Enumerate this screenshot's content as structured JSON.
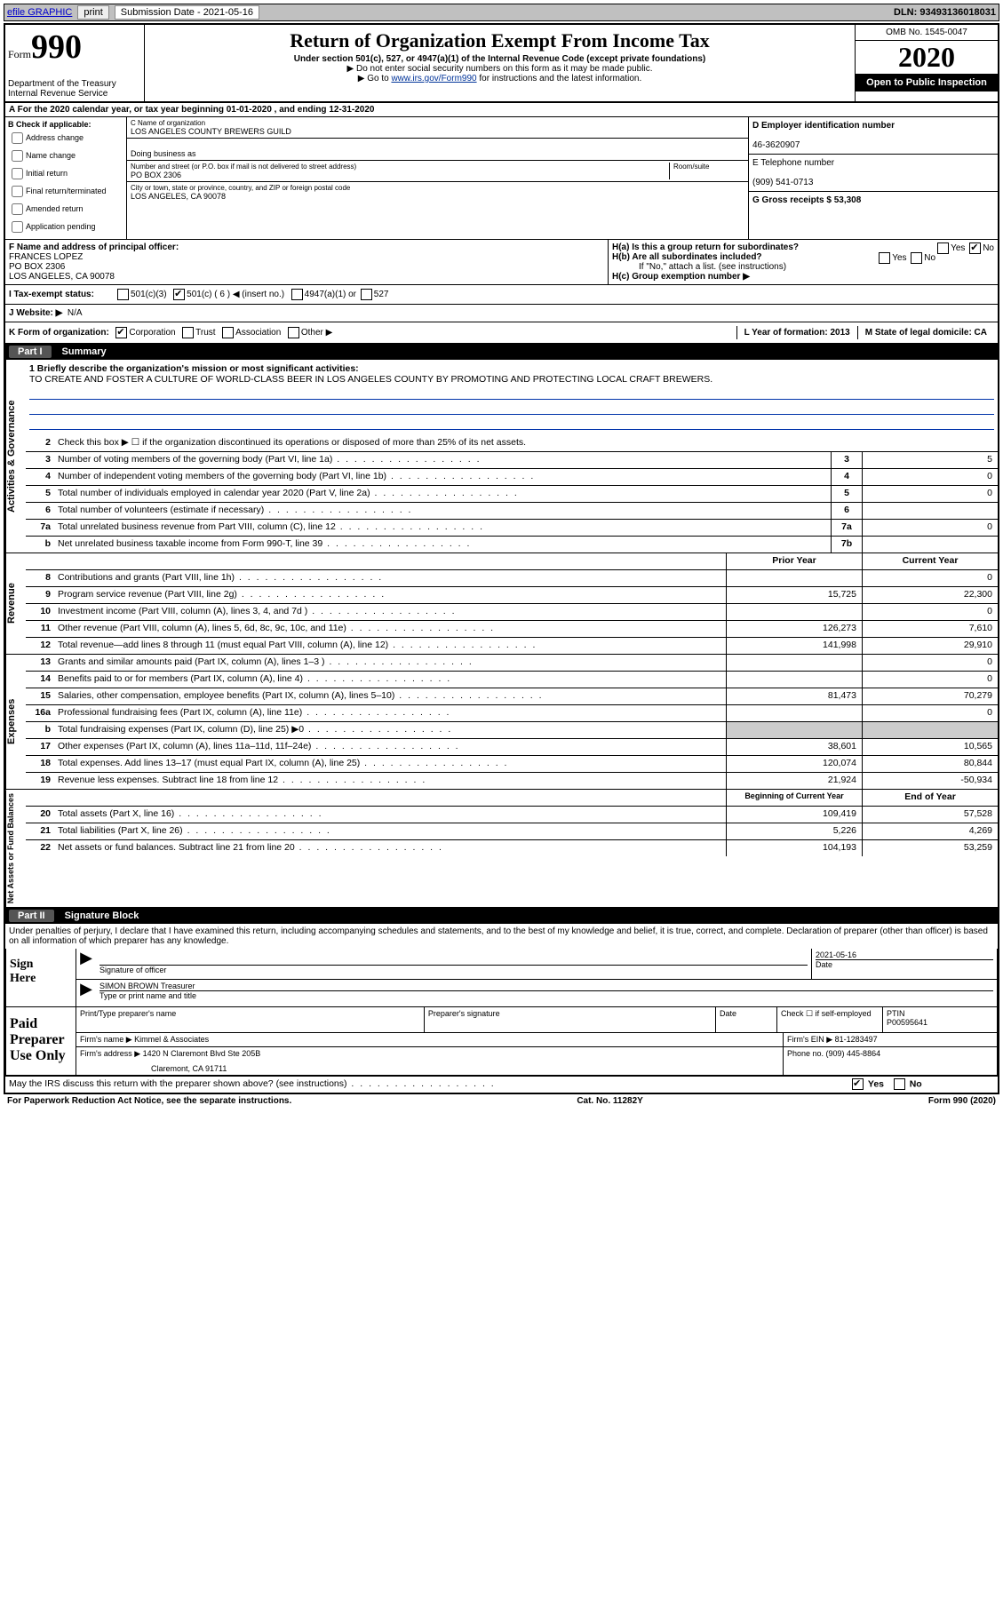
{
  "top": {
    "efile": "efile GRAPHIC",
    "print": "print",
    "subLabel": "Submission Date - 2021-05-16",
    "dln": "DLN: 93493136018031"
  },
  "header": {
    "formWord": "Form",
    "formNum": "990",
    "dept": "Department of the Treasury\nInternal Revenue Service",
    "title": "Return of Organization Exempt From Income Tax",
    "sub1": "Under section 501(c), 527, or 4947(a)(1) of the Internal Revenue Code (except private foundations)",
    "sub2": "▶ Do not enter social security numbers on this form as it may be made public.",
    "sub3_pre": "▶ Go to ",
    "sub3_link": "www.irs.gov/Form990",
    "sub3_post": " for instructions and the latest information.",
    "omb": "OMB No. 1545-0047",
    "year": "2020",
    "open": "Open to Public Inspection"
  },
  "rowA": "A For the 2020 calendar year, or tax year beginning 01-01-2020   , and ending 12-31-2020",
  "boxB": {
    "label": "B Check if applicable:",
    "opts": [
      "Address change",
      "Name change",
      "Initial return",
      "Final return/terminated",
      "Amended return",
      "Application pending"
    ]
  },
  "boxC": {
    "nameLabel": "C Name of organization",
    "name": "LOS ANGELES COUNTY BREWERS GUILD",
    "dba": "Doing business as",
    "addrLabel": "Number and street (or P.O. box if mail is not delivered to street address)",
    "addr": "PO BOX 2306",
    "room": "Room/suite",
    "cityLabel": "City or town, state or province, country, and ZIP or foreign postal code",
    "city": "LOS ANGELES, CA  90078"
  },
  "boxD": {
    "label": "D Employer identification number",
    "val": "46-3620907"
  },
  "boxE": {
    "label": "E Telephone number",
    "val": "(909) 541-0713"
  },
  "boxG": {
    "label": "G Gross receipts $ 53,308"
  },
  "boxF": {
    "label": "F  Name and address of principal officer:",
    "name": "FRANCES LOPEZ",
    "addr1": "PO BOX 2306",
    "addr2": "LOS ANGELES, CA  90078"
  },
  "boxH": {
    "ha": "H(a)  Is this a group return for subordinates?",
    "hb": "H(b)  Are all subordinates included?",
    "hbNote": "If \"No,\" attach a list. (see instructions)",
    "hc": "H(c)  Group exemption number ▶",
    "yes": "Yes",
    "no": "No"
  },
  "taxRow": {
    "label": "I  Tax-exempt status:",
    "o1": "501(c)(3)",
    "o2": "501(c) ( 6 ) ◀ (insert no.)",
    "o3": "4947(a)(1) or",
    "o4": "527"
  },
  "rowJ": {
    "label": "J  Website: ▶",
    "val": "N/A"
  },
  "rowK": {
    "label": "K Form of organization:",
    "o1": "Corporation",
    "o2": "Trust",
    "o3": "Association",
    "o4": "Other ▶",
    "L": "L Year of formation: 2013",
    "M": "M State of legal domicile: CA"
  },
  "part1": {
    "tag": "Part I",
    "title": "Summary"
  },
  "mission": {
    "label": "1  Briefly describe the organization's mission or most significant activities:",
    "text": "TO CREATE AND FOSTER A CULTURE OF WORLD-CLASS BEER IN LOS ANGELES COUNTY BY PROMOTING AND PROTECTING LOCAL CRAFT BREWERS."
  },
  "lines_gov": [
    {
      "n": "2",
      "d": "Check this box ▶ ☐  if the organization discontinued its operations or disposed of more than 25% of its net assets.",
      "box": "",
      "v": ""
    },
    {
      "n": "3",
      "d": "Number of voting members of the governing body (Part VI, line 1a)",
      "box": "3",
      "v": "5"
    },
    {
      "n": "4",
      "d": "Number of independent voting members of the governing body (Part VI, line 1b)",
      "box": "4",
      "v": "0"
    },
    {
      "n": "5",
      "d": "Total number of individuals employed in calendar year 2020 (Part V, line 2a)",
      "box": "5",
      "v": "0"
    },
    {
      "n": "6",
      "d": "Total number of volunteers (estimate if necessary)",
      "box": "6",
      "v": ""
    },
    {
      "n": "7a",
      "d": "Total unrelated business revenue from Part VIII, column (C), line 12",
      "box": "7a",
      "v": "0"
    },
    {
      "n": "b",
      "d": "Net unrelated business taxable income from Form 990-T, line 39",
      "box": "7b",
      "v": ""
    }
  ],
  "colHead": {
    "prior": "Prior Year",
    "curr": "Current Year"
  },
  "lines_rev": [
    {
      "n": "8",
      "d": "Contributions and grants (Part VIII, line 1h)",
      "p": "",
      "c": "0"
    },
    {
      "n": "9",
      "d": "Program service revenue (Part VIII, line 2g)",
      "p": "15,725",
      "c": "22,300"
    },
    {
      "n": "10",
      "d": "Investment income (Part VIII, column (A), lines 3, 4, and 7d )",
      "p": "",
      "c": "0"
    },
    {
      "n": "11",
      "d": "Other revenue (Part VIII, column (A), lines 5, 6d, 8c, 9c, 10c, and 11e)",
      "p": "126,273",
      "c": "7,610"
    },
    {
      "n": "12",
      "d": "Total revenue—add lines 8 through 11 (must equal Part VIII, column (A), line 12)",
      "p": "141,998",
      "c": "29,910"
    }
  ],
  "lines_exp": [
    {
      "n": "13",
      "d": "Grants and similar amounts paid (Part IX, column (A), lines 1–3 )",
      "p": "",
      "c": "0"
    },
    {
      "n": "14",
      "d": "Benefits paid to or for members (Part IX, column (A), line 4)",
      "p": "",
      "c": "0"
    },
    {
      "n": "15",
      "d": "Salaries, other compensation, employee benefits (Part IX, column (A), lines 5–10)",
      "p": "81,473",
      "c": "70,279"
    },
    {
      "n": "16a",
      "d": "Professional fundraising fees (Part IX, column (A), line 11e)",
      "p": "",
      "c": "0"
    },
    {
      "n": "b",
      "d": "Total fundraising expenses (Part IX, column (D), line 25) ▶0",
      "p": "shade",
      "c": "shade"
    },
    {
      "n": "17",
      "d": "Other expenses (Part IX, column (A), lines 11a–11d, 11f–24e)",
      "p": "38,601",
      "c": "10,565"
    },
    {
      "n": "18",
      "d": "Total expenses. Add lines 13–17 (must equal Part IX, column (A), line 25)",
      "p": "120,074",
      "c": "80,844"
    },
    {
      "n": "19",
      "d": "Revenue less expenses. Subtract line 18 from line 12",
      "p": "21,924",
      "c": "-50,934"
    }
  ],
  "colHead2": {
    "beg": "Beginning of Current Year",
    "end": "End of Year"
  },
  "lines_net": [
    {
      "n": "20",
      "d": "Total assets (Part X, line 16)",
      "p": "109,419",
      "c": "57,528"
    },
    {
      "n": "21",
      "d": "Total liabilities (Part X, line 26)",
      "p": "5,226",
      "c": "4,269"
    },
    {
      "n": "22",
      "d": "Net assets or fund balances. Subtract line 21 from line 20",
      "p": "104,193",
      "c": "53,259"
    }
  ],
  "part2": {
    "tag": "Part II",
    "title": "Signature Block"
  },
  "penalty": "Under penalties of perjury, I declare that I have examined this return, including accompanying schedules and statements, and to the best of my knowledge and belief, it is true, correct, and complete. Declaration of preparer (other than officer) is based on all information of which preparer has any knowledge.",
  "sign": {
    "here": "Sign\nHere",
    "sigOff": "Signature of officer",
    "date": "Date",
    "dateVal": "2021-05-16",
    "typed": "SIMON BROWN Treasurer",
    "typedLabel": "Type or print name and title"
  },
  "paid": {
    "label": "Paid\nPreparer\nUse Only",
    "c1": "Print/Type preparer's name",
    "c2": "Preparer's signature",
    "c3": "Date",
    "c4pre": "Check ☐ if self-employed",
    "c5": "PTIN",
    "ptin": "P00595641",
    "firmName": "Firm's name    ▶ Kimmel & Associates",
    "firmEIN": "Firm's EIN ▶ 81-1283497",
    "firmAddr1": "Firm's address ▶ 1420 N Claremont Blvd Ste 205B",
    "firmAddr2": "Claremont, CA  91711",
    "phone": "Phone no. (909) 445-8864"
  },
  "discuss": "May the IRS discuss this return with the preparer shown above? (see instructions)",
  "footer": {
    "left": "For Paperwork Reduction Act Notice, see the separate instructions.",
    "mid": "Cat. No. 11282Y",
    "right": "Form 990 (2020)"
  },
  "sideLabels": {
    "gov": "Activities & Governance",
    "rev": "Revenue",
    "exp": "Expenses",
    "net": "Net Assets or Fund Balances"
  }
}
